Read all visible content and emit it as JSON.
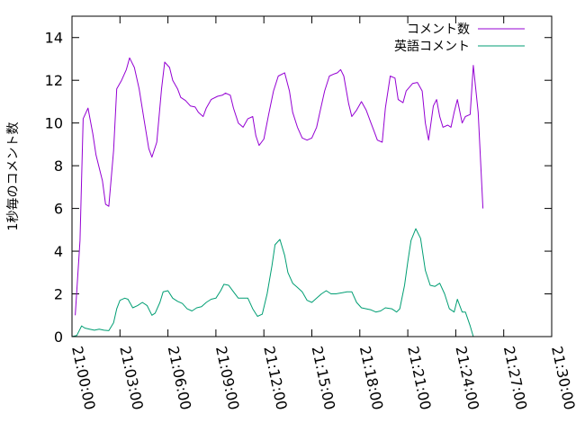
{
  "chart_data": {
    "type": "line",
    "xlabel": "",
    "ylabel": "1秒毎のコメント数",
    "xlim": [
      0,
      30
    ],
    "ylim": [
      0,
      15
    ],
    "x_ticks": [
      {
        "value": 0,
        "label": "21:00:00"
      },
      {
        "value": 3,
        "label": "21:03:00"
      },
      {
        "value": 6,
        "label": "21:06:00"
      },
      {
        "value": 9,
        "label": "21:09:00"
      },
      {
        "value": 12,
        "label": "21:12:00"
      },
      {
        "value": 15,
        "label": "21:15:00"
      },
      {
        "value": 18,
        "label": "21:18:00"
      },
      {
        "value": 21,
        "label": "21:21:00"
      },
      {
        "value": 24,
        "label": "21:24:00"
      },
      {
        "value": 27,
        "label": "21:27:00"
      },
      {
        "value": 30,
        "label": "21:30:00"
      }
    ],
    "y_ticks": [
      0,
      2,
      4,
      6,
      8,
      10,
      12,
      14
    ],
    "legend_position": "top-right",
    "grid": false,
    "series": [
      {
        "name": "コメント数",
        "color": "#9400d3",
        "points": [
          [
            0.2,
            1.0
          ],
          [
            0.5,
            4.5
          ],
          [
            0.7,
            10.2
          ],
          [
            1.0,
            10.7
          ],
          [
            1.3,
            9.5
          ],
          [
            1.5,
            8.5
          ],
          [
            1.9,
            7.3
          ],
          [
            2.1,
            6.2
          ],
          [
            2.3,
            6.1
          ],
          [
            2.6,
            8.7
          ],
          [
            2.8,
            11.6
          ],
          [
            3.1,
            12.0
          ],
          [
            3.4,
            12.5
          ],
          [
            3.6,
            13.05
          ],
          [
            3.9,
            12.6
          ],
          [
            4.2,
            11.6
          ],
          [
            4.5,
            10.2
          ],
          [
            4.8,
            8.8
          ],
          [
            5.0,
            8.4
          ],
          [
            5.3,
            9.1
          ],
          [
            5.6,
            11.6
          ],
          [
            5.8,
            12.85
          ],
          [
            6.1,
            12.6
          ],
          [
            6.3,
            12.0
          ],
          [
            6.6,
            11.6
          ],
          [
            6.8,
            11.2
          ],
          [
            7.1,
            11.05
          ],
          [
            7.4,
            10.8
          ],
          [
            7.7,
            10.75
          ],
          [
            7.9,
            10.5
          ],
          [
            8.2,
            10.3
          ],
          [
            8.4,
            10.7
          ],
          [
            8.7,
            11.1
          ],
          [
            9.1,
            11.25
          ],
          [
            9.4,
            11.3
          ],
          [
            9.6,
            11.4
          ],
          [
            9.9,
            11.3
          ],
          [
            10.1,
            10.7
          ],
          [
            10.4,
            10.0
          ],
          [
            10.7,
            9.8
          ],
          [
            11.0,
            10.2
          ],
          [
            11.3,
            10.3
          ],
          [
            11.5,
            9.4
          ],
          [
            11.7,
            8.95
          ],
          [
            12.0,
            9.25
          ],
          [
            12.3,
            10.4
          ],
          [
            12.6,
            11.5
          ],
          [
            12.9,
            12.2
          ],
          [
            13.3,
            12.35
          ],
          [
            13.6,
            11.5
          ],
          [
            13.8,
            10.5
          ],
          [
            14.1,
            9.8
          ],
          [
            14.4,
            9.3
          ],
          [
            14.7,
            9.2
          ],
          [
            15.0,
            9.3
          ],
          [
            15.3,
            9.8
          ],
          [
            15.5,
            10.5
          ],
          [
            15.8,
            11.5
          ],
          [
            16.1,
            12.2
          ],
          [
            16.4,
            12.3
          ],
          [
            16.6,
            12.35
          ],
          [
            16.8,
            12.5
          ],
          [
            17.0,
            12.2
          ],
          [
            17.3,
            10.9
          ],
          [
            17.5,
            10.3
          ],
          [
            17.8,
            10.6
          ],
          [
            18.1,
            11.0
          ],
          [
            18.4,
            10.6
          ],
          [
            18.7,
            10.0
          ],
          [
            18.9,
            9.6
          ],
          [
            19.1,
            9.2
          ],
          [
            19.4,
            9.1
          ],
          [
            19.6,
            10.7
          ],
          [
            19.9,
            12.2
          ],
          [
            20.2,
            12.1
          ],
          [
            20.4,
            11.1
          ],
          [
            20.7,
            10.95
          ],
          [
            20.9,
            11.5
          ],
          [
            21.3,
            11.85
          ],
          [
            21.6,
            11.9
          ],
          [
            21.9,
            11.5
          ],
          [
            22.1,
            10.0
          ],
          [
            22.3,
            9.2
          ],
          [
            22.6,
            10.8
          ],
          [
            22.8,
            11.1
          ],
          [
            23.0,
            10.3
          ],
          [
            23.2,
            9.8
          ],
          [
            23.5,
            9.9
          ],
          [
            23.7,
            9.8
          ],
          [
            23.9,
            10.5
          ],
          [
            24.1,
            11.1
          ],
          [
            24.4,
            10.0
          ],
          [
            24.6,
            10.3
          ],
          [
            24.9,
            10.4
          ],
          [
            25.1,
            12.7
          ],
          [
            25.4,
            10.5
          ],
          [
            25.7,
            6.0
          ]
        ]
      },
      {
        "name": "英語コメント",
        "color": "#009e73",
        "points": [
          [
            0.0,
            0.0
          ],
          [
            0.3,
            0.05
          ],
          [
            0.6,
            0.5
          ],
          [
            0.8,
            0.4
          ],
          [
            1.1,
            0.35
          ],
          [
            1.4,
            0.3
          ],
          [
            1.7,
            0.35
          ],
          [
            2.0,
            0.3
          ],
          [
            2.3,
            0.28
          ],
          [
            2.6,
            0.65
          ],
          [
            2.8,
            1.3
          ],
          [
            3.0,
            1.7
          ],
          [
            3.3,
            1.8
          ],
          [
            3.5,
            1.75
          ],
          [
            3.8,
            1.35
          ],
          [
            4.1,
            1.45
          ],
          [
            4.4,
            1.6
          ],
          [
            4.7,
            1.45
          ],
          [
            5.0,
            1.0
          ],
          [
            5.2,
            1.1
          ],
          [
            5.5,
            1.6
          ],
          [
            5.7,
            2.1
          ],
          [
            6.0,
            2.15
          ],
          [
            6.3,
            1.8
          ],
          [
            6.6,
            1.65
          ],
          [
            6.9,
            1.55
          ],
          [
            7.2,
            1.3
          ],
          [
            7.5,
            1.2
          ],
          [
            7.8,
            1.35
          ],
          [
            8.1,
            1.4
          ],
          [
            8.4,
            1.6
          ],
          [
            8.7,
            1.75
          ],
          [
            9.0,
            1.8
          ],
          [
            9.3,
            2.15
          ],
          [
            9.5,
            2.45
          ],
          [
            9.8,
            2.4
          ],
          [
            10.1,
            2.1
          ],
          [
            10.4,
            1.8
          ],
          [
            10.7,
            1.8
          ],
          [
            11.0,
            1.8
          ],
          [
            11.3,
            1.3
          ],
          [
            11.6,
            0.95
          ],
          [
            11.9,
            1.05
          ],
          [
            12.2,
            2.0
          ],
          [
            12.5,
            3.3
          ],
          [
            12.7,
            4.3
          ],
          [
            13.0,
            4.55
          ],
          [
            13.3,
            3.8
          ],
          [
            13.5,
            3.0
          ],
          [
            13.8,
            2.5
          ],
          [
            14.1,
            2.3
          ],
          [
            14.4,
            2.1
          ],
          [
            14.7,
            1.7
          ],
          [
            15.0,
            1.6
          ],
          [
            15.3,
            1.8
          ],
          [
            15.6,
            2.0
          ],
          [
            15.9,
            2.15
          ],
          [
            16.2,
            2.0
          ],
          [
            16.5,
            2.0
          ],
          [
            16.9,
            2.05
          ],
          [
            17.2,
            2.1
          ],
          [
            17.5,
            2.1
          ],
          [
            17.8,
            1.6
          ],
          [
            18.1,
            1.35
          ],
          [
            18.4,
            1.3
          ],
          [
            18.7,
            1.25
          ],
          [
            19.0,
            1.15
          ],
          [
            19.3,
            1.2
          ],
          [
            19.6,
            1.35
          ],
          [
            20.0,
            1.3
          ],
          [
            20.3,
            1.15
          ],
          [
            20.5,
            1.3
          ],
          [
            20.8,
            2.4
          ],
          [
            21.0,
            3.5
          ],
          [
            21.2,
            4.5
          ],
          [
            21.5,
            5.05
          ],
          [
            21.8,
            4.6
          ],
          [
            22.1,
            3.1
          ],
          [
            22.4,
            2.4
          ],
          [
            22.7,
            2.35
          ],
          [
            23.0,
            2.5
          ],
          [
            23.3,
            2.0
          ],
          [
            23.6,
            1.3
          ],
          [
            23.9,
            1.15
          ],
          [
            24.1,
            1.75
          ],
          [
            24.4,
            1.15
          ],
          [
            24.6,
            1.15
          ],
          [
            24.9,
            0.5
          ],
          [
            25.1,
            0.0
          ]
        ]
      }
    ]
  }
}
